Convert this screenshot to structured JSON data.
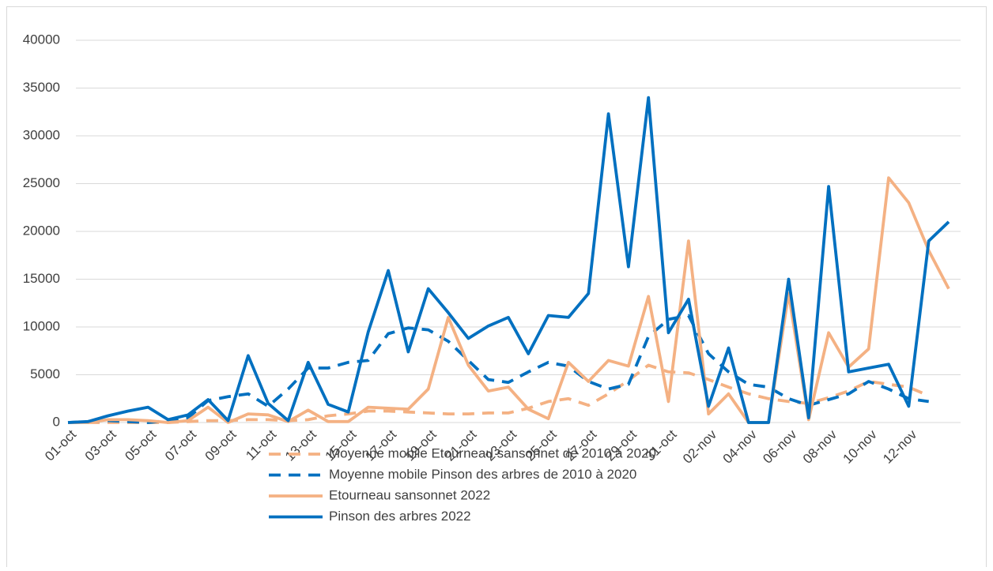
{
  "chart_data": {
    "type": "line",
    "categories": [
      "01-oct",
      null,
      "03-oct",
      null,
      "05-oct",
      null,
      "07-oct",
      null,
      "09-oct",
      null,
      "11-oct",
      null,
      "13-oct",
      null,
      "15-oct",
      null,
      "17-oct",
      null,
      "19-oct",
      null,
      "21-oct",
      null,
      "23-oct",
      null,
      "25-oct",
      null,
      "27-oct",
      null,
      "29-oct",
      null,
      "31-oct",
      null,
      "02-nov",
      null,
      "04-nov",
      null,
      "06-nov",
      null,
      "08-nov",
      null,
      "10-nov",
      null,
      "12-nov",
      null,
      null
    ],
    "series": [
      {
        "name": "Moyenne mobile Etourneau sansonnet de 2010 à 2020",
        "color": "#f4b183",
        "dashed": true,
        "values": [
          0,
          0,
          0,
          0,
          0,
          0,
          100,
          200,
          200,
          300,
          300,
          200,
          300,
          700,
          900,
          1200,
          1200,
          1100,
          1000,
          900,
          900,
          1000,
          1000,
          1500,
          2200,
          2500,
          1800,
          3000,
          4400,
          6000,
          5300,
          5200,
          4500,
          3700,
          3000,
          2500,
          2200,
          2000,
          2600,
          3300,
          4300,
          4000,
          3700,
          2800,
          null
        ]
      },
      {
        "name": "Moyenne mobile Pinson des arbres de 2010 à 2020",
        "color": "#0070c0",
        "dashed": true,
        "values": [
          0,
          100,
          200,
          100,
          0,
          200,
          500,
          2300,
          2700,
          3000,
          1700,
          3500,
          5700,
          5700,
          6300,
          6500,
          9300,
          9900,
          9700,
          8500,
          6500,
          4500,
          4200,
          5300,
          6300,
          5900,
          4300,
          3500,
          4000,
          9000,
          10800,
          11200,
          7200,
          5300,
          4000,
          3700,
          2500,
          1800,
          2400,
          3000,
          4300,
          3500,
          2500,
          2200,
          null
        ]
      },
      {
        "name": "Etourneau sansonnet 2022",
        "color": "#f4b183",
        "dashed": false,
        "values": [
          0,
          0,
          300,
          300,
          200,
          0,
          200,
          1600,
          0,
          900,
          800,
          100,
          1300,
          100,
          100,
          1600,
          1500,
          1400,
          3500,
          11000,
          6000,
          3300,
          3700,
          1400,
          400,
          6300,
          4300,
          6500,
          5900,
          13200,
          2200,
          19000,
          900,
          3000,
          0,
          0,
          13500,
          300,
          9400,
          5800,
          7700,
          25600,
          23000,
          18000,
          14000
        ]
      },
      {
        "name": "Pinson des arbres 2022",
        "color": "#0070c0",
        "dashed": false,
        "values": [
          0,
          100,
          700,
          1200,
          1600,
          300,
          800,
          2400,
          200,
          7000,
          2000,
          200,
          6300,
          1900,
          1100,
          9500,
          15900,
          7400,
          14000,
          11500,
          8800,
          10100,
          11000,
          7200,
          11200,
          11000,
          13500,
          32300,
          16300,
          34000,
          9400,
          12900,
          1700,
          7800,
          0,
          0,
          15000,
          500,
          24700,
          5300,
          5700,
          6100,
          1700,
          19000,
          21000
        ]
      }
    ],
    "ylim": [
      0,
      40000
    ],
    "yticks": [
      0,
      5000,
      10000,
      15000,
      20000,
      25000,
      30000,
      35000,
      40000
    ],
    "grid": true,
    "legend": "bottom"
  }
}
